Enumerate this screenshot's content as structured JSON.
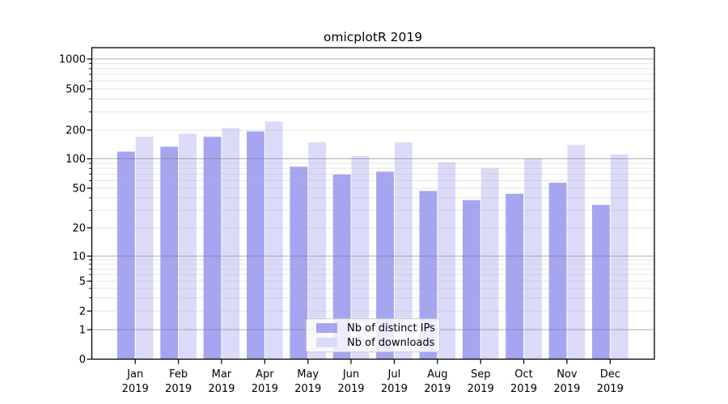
{
  "title": "omicplotR 2019",
  "chart_data": {
    "type": "bar",
    "title": "omicplotR 2019",
    "scale": "symlog",
    "grid": "both",
    "legend_position": "lower-center",
    "xlabel": "",
    "ylabel": "",
    "categories": [
      "Jan 2019",
      "Feb 2019",
      "Mar 2019",
      "Apr 2019",
      "May 2019",
      "Jun 2019",
      "Jul 2019",
      "Aug 2019",
      "Sep 2019",
      "Oct 2019",
      "Nov 2019",
      "Dec 2019"
    ],
    "series": [
      {
        "name": "Nb of distinct IPs",
        "color": "#a5a5f2",
        "values": [
          119,
          134,
          170,
          194,
          83,
          69,
          74,
          47,
          38,
          44,
          57,
          34
        ]
      },
      {
        "name": "Nb of downloads",
        "color": "#dbdbf9",
        "values": [
          170,
          183,
          209,
          242,
          149,
          107,
          149,
          92,
          80,
          101,
          139,
          111
        ]
      }
    ],
    "yticks": [
      0,
      1,
      2,
      5,
      10,
      20,
      50,
      100,
      200,
      500,
      1000
    ],
    "ylim": [
      0,
      1200
    ]
  },
  "colors": {
    "background": "#ffffff",
    "axis": "#000000",
    "text": "#000000",
    "grid_major": "rgba(120,120,120,0.6)",
    "grid_minor": "rgba(175,175,175,0.32)",
    "legend_border": "#cccccc",
    "legend_background": "rgba(255,255,255,0.8)"
  }
}
